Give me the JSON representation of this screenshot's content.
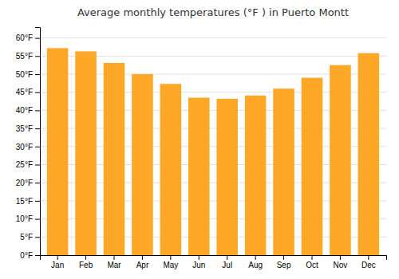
{
  "chart_data": {
    "type": "bar",
    "title": "Average monthly temperatures (°F ) in Puerto Montt",
    "categories": [
      "Jan",
      "Feb",
      "Mar",
      "Apr",
      "May",
      "Jun",
      "Jul",
      "Aug",
      "Sep",
      "Oct",
      "Nov",
      "Dec"
    ],
    "values": [
      57.2,
      56.3,
      53.1,
      50.0,
      47.3,
      43.5,
      43.2,
      44.1,
      46.0,
      49.0,
      52.5,
      55.8
    ],
    "color": "#FFA726",
    "ylim": [
      0,
      63
    ],
    "yticks": [
      {
        "value": 0,
        "label": "0°F"
      },
      {
        "value": 5,
        "label": "5°F"
      },
      {
        "value": 10,
        "label": "10°F"
      },
      {
        "value": 15,
        "label": "15°F"
      },
      {
        "value": 20,
        "label": "20°F"
      },
      {
        "value": 25,
        "label": "25°F"
      },
      {
        "value": 30,
        "label": "30°F"
      },
      {
        "value": 35,
        "label": "35°F"
      },
      {
        "value": 40,
        "label": "40°F"
      },
      {
        "value": 45,
        "label": "45°F"
      },
      {
        "value": 50,
        "label": "50°F"
      },
      {
        "value": 55,
        "label": "55°F"
      },
      {
        "value": 60,
        "label": "60°F"
      }
    ],
    "grid": true
  }
}
